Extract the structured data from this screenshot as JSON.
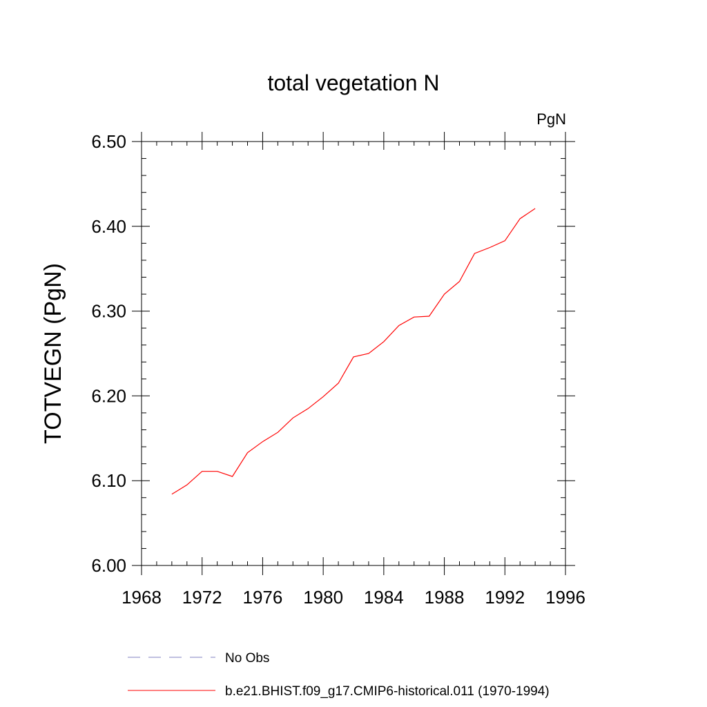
{
  "chart_data": {
    "type": "line",
    "title": "total vegetation N",
    "units_label": "PgN",
    "ylabel": "TOTVEGN  (PgN)",
    "xlabel": "",
    "xlim": [
      1968,
      1996
    ],
    "ylim": [
      6.0,
      6.5
    ],
    "x_ticks": [
      1968,
      1972,
      1976,
      1980,
      1984,
      1988,
      1992,
      1996
    ],
    "x_tick_labels": [
      "1968",
      "1972",
      "1976",
      "1980",
      "1984",
      "1988",
      "1992",
      "1996"
    ],
    "y_ticks": [
      6.0,
      6.1,
      6.2,
      6.3,
      6.4,
      6.5
    ],
    "y_tick_labels": [
      "6.00",
      "6.10",
      "6.20",
      "6.30",
      "6.40",
      "6.50"
    ],
    "grid": false,
    "legend_position": "bottom",
    "series": [
      {
        "name": "b.e21.BHIST.f09_g17.CMIP6-historical.011 (1970-1994)",
        "color": "#ff0000",
        "style": "solid",
        "x": [
          1970,
          1971,
          1972,
          1973,
          1974,
          1975,
          1976,
          1977,
          1978,
          1979,
          1980,
          1981,
          1982,
          1983,
          1984,
          1985,
          1986,
          1987,
          1988,
          1989,
          1990,
          1991,
          1992,
          1993,
          1994
        ],
        "y": [
          6.084,
          6.095,
          6.111,
          6.111,
          6.105,
          6.133,
          6.146,
          6.157,
          6.174,
          6.185,
          6.199,
          6.215,
          6.246,
          6.25,
          6.264,
          6.283,
          6.293,
          6.294,
          6.32,
          6.335,
          6.368,
          6.375,
          6.383,
          6.409,
          6.421
        ]
      }
    ],
    "legend": [
      {
        "label": "No Obs",
        "color": "#8080c0",
        "style": "dashed"
      },
      {
        "label": "b.e21.BHIST.f09_g17.CMIP6-historical.011 (1970-1994)",
        "color": "#ff0000",
        "style": "solid"
      }
    ]
  }
}
